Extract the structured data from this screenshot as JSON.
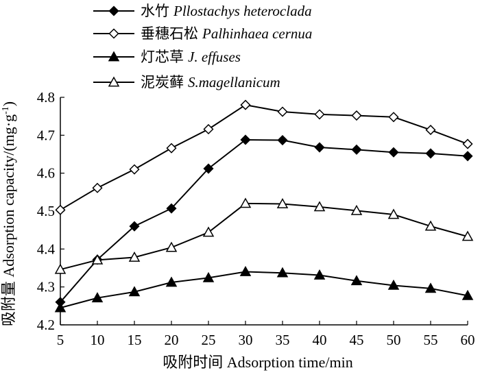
{
  "chart_data": {
    "type": "line",
    "xlabel": "吸附时间 Adsorption time/min",
    "ylabel": "吸附量 Adsorption capacity/(mg·g",
    "ylabel_sup": "-1",
    "ylabel_close": ")",
    "x": [
      5,
      10,
      15,
      20,
      25,
      30,
      35,
      40,
      45,
      50,
      55,
      60
    ],
    "xlim": [
      5,
      60
    ],
    "ylim": [
      4.2,
      4.8
    ],
    "yticks": [
      "4.2",
      "4.3",
      "4.4",
      "4.5",
      "4.6",
      "4.7",
      "4.8"
    ],
    "xticks": [
      "5",
      "10",
      "15",
      "20",
      "25",
      "30",
      "35",
      "40",
      "45",
      "50",
      "55",
      "60"
    ],
    "grid": false,
    "legend_position": "top-left, outside plot",
    "series": [
      {
        "name_cn": "水竹",
        "name_sci": "Pllostachys heteroclada",
        "marker": "diamond-filled",
        "values": [
          4.26,
          4.372,
          4.46,
          4.507,
          4.612,
          4.688,
          4.687,
          4.668,
          4.662,
          4.655,
          4.652,
          4.645
        ]
      },
      {
        "name_cn": "垂穗石松",
        "name_sci": "Palhinhaea cernua",
        "marker": "diamond-open",
        "values": [
          4.503,
          4.561,
          4.61,
          4.666,
          4.716,
          4.78,
          4.762,
          4.755,
          4.752,
          4.748,
          4.714,
          4.677
        ]
      },
      {
        "name_cn": "灯芯草",
        "name_sci": "J. effuses",
        "marker": "triangle-filled",
        "values": [
          4.245,
          4.271,
          4.287,
          4.312,
          4.324,
          4.34,
          4.337,
          4.331,
          4.316,
          4.304,
          4.296,
          4.277
        ]
      },
      {
        "name_cn": "泥炭藓",
        "name_sci": "S.magellanicum",
        "marker": "triangle-open",
        "values": [
          4.346,
          4.371,
          4.378,
          4.404,
          4.444,
          4.52,
          4.519,
          4.511,
          4.501,
          4.491,
          4.46,
          4.433
        ]
      }
    ],
    "colors": {
      "line": "#000000",
      "background": "#ffffff"
    }
  }
}
